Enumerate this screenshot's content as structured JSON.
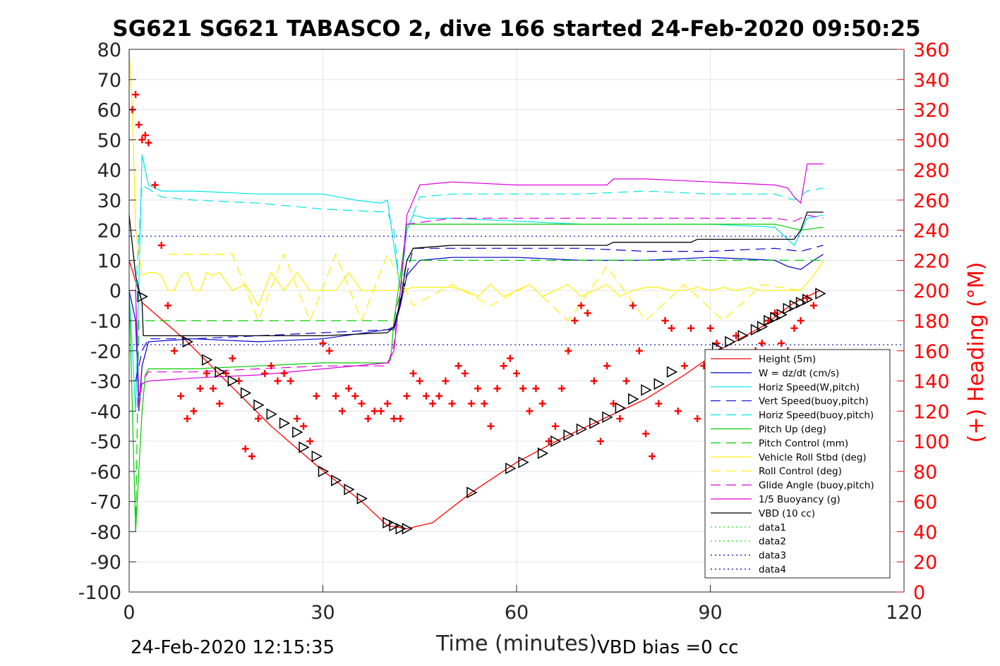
{
  "chart_data": {
    "type": "line",
    "title": "SG621 SG621 TABASCO 2, dive 166 started 24-Feb-2020 09:50:25",
    "xlabel": "Time (minutes)",
    "ylabel_right": "(+) Heading (°M)",
    "xlim": [
      0,
      120
    ],
    "ylim": [
      -100,
      80
    ],
    "y2lim": [
      0,
      360
    ],
    "xticks": [
      "0",
      "30",
      "60",
      "90",
      "120"
    ],
    "yticks": [
      "80",
      "70",
      "60",
      "50",
      "40",
      "30",
      "20",
      "10",
      "0",
      "-10",
      "-20",
      "-30",
      "-40",
      "-50",
      "-60",
      "-70",
      "-80",
      "-90",
      "-100"
    ],
    "y2ticks": [
      "360",
      "340",
      "320",
      "300",
      "280",
      "260",
      "240",
      "220",
      "200",
      "180",
      "160",
      "140",
      "120",
      "100",
      "80",
      "60",
      "40",
      "20",
      "0"
    ],
    "grid": true,
    "legend_position": "lower-right",
    "footer_left": "24-Feb-2020 12:15:35",
    "footer_right": "VBD bias =0 cc",
    "colors": {
      "height": "#ff0000",
      "w": "#0000cc",
      "horiz_w": "#00e5e5",
      "vert_buoy": "#0000cc",
      "horiz_buoy": "#00e5e5",
      "pitch": "#00cc00",
      "pitch_ctrl": "#00cc00",
      "roll": "#ffee00",
      "roll_ctrl": "#ffee00",
      "glide": "#dd00dd",
      "buoy": "#dd00dd",
      "vbd": "#000000",
      "heading": "#ff0000",
      "data": "#00dd00",
      "data_blue": "#0000aa"
    },
    "series": [
      {
        "name": "Height (5m)",
        "style": "solid",
        "color_key": "height",
        "x": [
          0,
          2,
          9,
          15,
          22,
          29,
          36,
          40,
          43,
          47,
          53,
          60,
          67,
          74,
          80,
          86,
          92,
          98,
          103,
          107
        ],
        "y": [
          10,
          -4,
          -17,
          -30,
          -45,
          -58,
          -70,
          -78,
          -79,
          -77,
          -67,
          -57,
          -49,
          -42,
          -36,
          -28,
          -19,
          -12,
          -4,
          0
        ]
      },
      {
        "name": "W = dz/dt (cm/s)",
        "style": "solid",
        "color_key": "w",
        "x": [
          0,
          1,
          1.5,
          2,
          3,
          10,
          20,
          30,
          40,
          41,
          42,
          43,
          45,
          50,
          60,
          70,
          80,
          90,
          100,
          102,
          104,
          106,
          107.5
        ],
        "y": [
          0,
          -10,
          -40,
          -25,
          -17,
          -16,
          -17,
          -16,
          -13,
          -13,
          -5,
          5,
          10,
          11,
          11,
          10,
          10,
          11,
          10,
          8,
          7,
          10,
          12
        ]
      },
      {
        "name": "Horiz Speed(W,pitch)",
        "style": "solid",
        "color_key": "horiz_w",
        "x": [
          0,
          1,
          2,
          3,
          5,
          10,
          20,
          30,
          35,
          39,
          40,
          41,
          42,
          43,
          44,
          46,
          50,
          60,
          70,
          80,
          90,
          100,
          103,
          105,
          107.5
        ],
        "y": [
          0,
          -40,
          45,
          35,
          33,
          33,
          32,
          32,
          30,
          29,
          30,
          15,
          0,
          20,
          25,
          24,
          24,
          23,
          22,
          22,
          22,
          21,
          15,
          24,
          25
        ]
      },
      {
        "name": "Vert Speed(buoy,pitch)",
        "style": "dashed",
        "color_key": "vert_buoy",
        "x": [
          1,
          2,
          3,
          10,
          20,
          30,
          40,
          41,
          42,
          44,
          50,
          60,
          70,
          80,
          90,
          100,
          104,
          107.5
        ],
        "y": [
          -30,
          -20,
          -16,
          -16,
          -15,
          -14,
          -13,
          -12,
          -3,
          14,
          14,
          14,
          14,
          13,
          13,
          14,
          13,
          15
        ]
      },
      {
        "name": "Horiz Speed(buoy,pitch)",
        "style": "dashed",
        "color_key": "horiz_buoy",
        "x": [
          1,
          2,
          5,
          10,
          20,
          30,
          40,
          41,
          42,
          43,
          45,
          50,
          60,
          70,
          80,
          90,
          100,
          103,
          105,
          107.5
        ],
        "y": [
          0,
          35,
          31,
          30,
          29,
          27,
          26,
          20,
          0,
          20,
          31,
          32,
          32,
          32,
          33,
          32,
          32,
          30,
          33,
          34
        ]
      },
      {
        "name": "Pitch Up (deg)",
        "style": "solid",
        "color_key": "pitch",
        "x": [
          0,
          1,
          1.5,
          2,
          2.5,
          3,
          10,
          20,
          30,
          40,
          40.5,
          41,
          42,
          43,
          50,
          60,
          70,
          80,
          90,
          100,
          102,
          104,
          107.5
        ],
        "y": [
          0,
          -80,
          -60,
          -40,
          -28,
          -26,
          -26,
          -25,
          -24,
          -24,
          -23,
          -10,
          5,
          22,
          22,
          22,
          22,
          22,
          22,
          22,
          21,
          20,
          21
        ]
      },
      {
        "name": "Pitch Control (mm)",
        "style": "dashed",
        "color_key": "pitch_ctrl",
        "x": [
          1,
          1.5,
          2,
          3,
          41,
          42,
          43,
          107
        ],
        "y": [
          -80,
          -10,
          -10,
          -10,
          -10,
          0,
          10,
          10
        ]
      },
      {
        "name": "Vehicle Roll Stbd (deg)",
        "style": "solid",
        "color_key": "roll",
        "x": [
          0,
          0.5,
          1,
          2,
          3,
          4,
          5,
          6,
          7,
          8,
          9,
          10,
          11,
          12,
          13,
          14,
          16,
          18,
          20,
          22,
          24,
          26,
          28,
          30,
          32,
          34,
          36,
          38,
          40,
          42,
          44,
          46,
          48,
          50,
          52,
          54,
          56,
          58,
          60,
          62,
          64,
          66,
          68,
          70,
          72,
          74,
          76,
          78,
          80,
          82,
          84,
          86,
          88,
          90,
          92,
          94,
          96,
          98,
          100,
          102,
          104,
          106,
          107.5
        ],
        "y": [
          80,
          60,
          20,
          5,
          6,
          6,
          5,
          0,
          0,
          5,
          6,
          0,
          0,
          6,
          5,
          6,
          0,
          2,
          -5,
          6,
          0,
          6,
          0,
          0,
          0,
          6,
          0,
          0,
          0,
          0,
          1,
          1,
          1,
          1,
          0,
          -2,
          2,
          -2,
          0,
          2,
          -2,
          0,
          2,
          -2,
          0,
          2,
          -2,
          0,
          1,
          1,
          0,
          0,
          1,
          0,
          1,
          0,
          1,
          0,
          0,
          0,
          0,
          5,
          10
        ]
      },
      {
        "name": "Roll Control (deg)",
        "style": "dashed",
        "color_key": "roll_ctrl",
        "x": [
          6,
          12,
          16,
          20,
          24,
          28,
          32,
          36,
          40,
          44,
          50,
          56,
          62,
          68,
          74,
          80,
          86,
          92,
          98,
          104
        ],
        "y": [
          12,
          12,
          12,
          -10,
          12,
          -10,
          12,
          -10,
          12,
          -5,
          2,
          -5,
          2,
          -10,
          8,
          -10,
          2,
          -10,
          2,
          0
        ]
      },
      {
        "name": "Glide Angle (buoy,pitch)",
        "style": "dashed",
        "color_key": "glide",
        "x": [
          1,
          1.5,
          2,
          3,
          10,
          20,
          30,
          40,
          41,
          42,
          43,
          50,
          60,
          70,
          80,
          90,
          100,
          103,
          105,
          107.5
        ],
        "y": [
          0,
          -40,
          -30,
          -27,
          -27,
          -26,
          -25,
          -25,
          -18,
          0,
          22,
          24,
          24,
          24,
          24,
          24,
          24,
          23,
          25,
          24
        ]
      },
      {
        "name": "1/5 Buoyancy (g)",
        "style": "solid",
        "color_key": "buoy",
        "x": [
          0,
          1,
          1.5,
          2,
          3,
          10,
          20,
          30,
          40,
          41,
          42,
          43,
          45,
          50,
          60,
          70,
          74,
          75,
          80,
          90,
          100,
          102,
          103,
          104,
          105,
          107.5
        ],
        "y": [
          0,
          0,
          -35,
          -31,
          -30,
          -29,
          -28,
          -26,
          -24,
          -20,
          0,
          25,
          35,
          36,
          35,
          35,
          35,
          37,
          37,
          36,
          35,
          34,
          31,
          29,
          42,
          42
        ]
      },
      {
        "name": "VBD (10 cc)",
        "style": "solid",
        "color_key": "vbd",
        "x": [
          0,
          1,
          2,
          2.2,
          10,
          20,
          30,
          40,
          41,
          42,
          43,
          44,
          50,
          60,
          70,
          74,
          75,
          80,
          87,
          88,
          95,
          103,
          104,
          105,
          107.5
        ],
        "y": [
          25,
          5,
          -4,
          -15,
          -15,
          -15,
          -15,
          -14,
          -12,
          -4,
          10,
          14,
          15,
          15,
          15,
          15,
          16,
          16,
          16,
          17,
          17,
          17,
          20,
          26,
          26
        ]
      },
      {
        "name": "data1",
        "style": "dotted",
        "color_key": "data",
        "x": [],
        "y": []
      },
      {
        "name": "data2",
        "style": "dotted",
        "color_key": "data",
        "x": [],
        "y": []
      },
      {
        "name": "data3",
        "style": "dotted",
        "color_key": "data_blue",
        "x": [
          0,
          120
        ],
        "y": [
          18,
          18
        ]
      },
      {
        "name": "data4",
        "style": "dotted",
        "color_key": "data_blue",
        "x": [
          0,
          120
        ],
        "y": [
          -18,
          -18
        ]
      }
    ],
    "heading_series": {
      "axis": "right",
      "marker": "plus",
      "color_key": "heading",
      "x": [
        0.5,
        1,
        1.5,
        2,
        2.5,
        3,
        4,
        5,
        6,
        7,
        8,
        9,
        10,
        11,
        12,
        13,
        14,
        15,
        16,
        17,
        18,
        19,
        20,
        21,
        22,
        23,
        24,
        25,
        26,
        27,
        28,
        29,
        30,
        31,
        32,
        33,
        34,
        35,
        36,
        37,
        38,
        39,
        40,
        41,
        42,
        43,
        44,
        45,
        46,
        47,
        48,
        49,
        50,
        51,
        52,
        53,
        54,
        55,
        56,
        57,
        58,
        59,
        60,
        61,
        62,
        63,
        64,
        65,
        66,
        67,
        68,
        69,
        70,
        71,
        72,
        73,
        74,
        75,
        76,
        77,
        78,
        79,
        80,
        81,
        82,
        83,
        84,
        85,
        86,
        87,
        88,
        89,
        90,
        91,
        92,
        93,
        94,
        95,
        96,
        97,
        98,
        99,
        100,
        101,
        102,
        103,
        104,
        105,
        106
      ],
      "y": [
        320,
        330,
        310,
        300,
        303,
        298,
        270,
        230,
        190,
        160,
        130,
        115,
        120,
        135,
        145,
        135,
        125,
        145,
        155,
        140,
        95,
        90,
        115,
        145,
        150,
        140,
        145,
        140,
        115,
        110,
        100,
        130,
        165,
        160,
        130,
        120,
        135,
        130,
        125,
        115,
        120,
        120,
        125,
        115,
        115,
        130,
        145,
        140,
        130,
        125,
        130,
        140,
        125,
        150,
        145,
        125,
        135,
        125,
        110,
        135,
        150,
        155,
        145,
        135,
        120,
        135,
        125,
        100,
        110,
        135,
        160,
        180,
        190,
        185,
        140,
        100,
        150,
        125,
        115,
        140,
        190,
        160,
        105,
        90,
        125,
        180,
        175,
        120,
        150,
        175,
        115,
        150,
        175,
        165,
        130,
        150,
        170,
        120,
        150,
        160,
        165,
        180,
        185,
        165,
        160,
        175,
        180,
        195,
        190
      ]
    },
    "vbd_markers": {
      "x": [
        2,
        9,
        12,
        14,
        16,
        18,
        20,
        22,
        24,
        26,
        27,
        29,
        30,
        32,
        34,
        36,
        40,
        41,
        42,
        43,
        53,
        59,
        61,
        64,
        66,
        68,
        70,
        72,
        74,
        76,
        78,
        80,
        82,
        84,
        91,
        93,
        95,
        97,
        98,
        99,
        100,
        101,
        102,
        103,
        104,
        105,
        107
      ],
      "y": [
        -2,
        -17,
        -23,
        -27,
        -30,
        -34,
        -38,
        -41,
        -44,
        -47,
        -52,
        -55,
        -60,
        -63,
        -66,
        -69,
        -77,
        -78,
        -79,
        -79,
        -67,
        -59,
        -57,
        -54,
        -50,
        -48,
        -46,
        -44,
        -42,
        -39,
        -36,
        -33,
        -31,
        -27,
        -19,
        -17,
        -15,
        -13,
        -12,
        -10,
        -9,
        -8,
        -6,
        -5,
        -4,
        -3,
        -1
      ]
    }
  }
}
